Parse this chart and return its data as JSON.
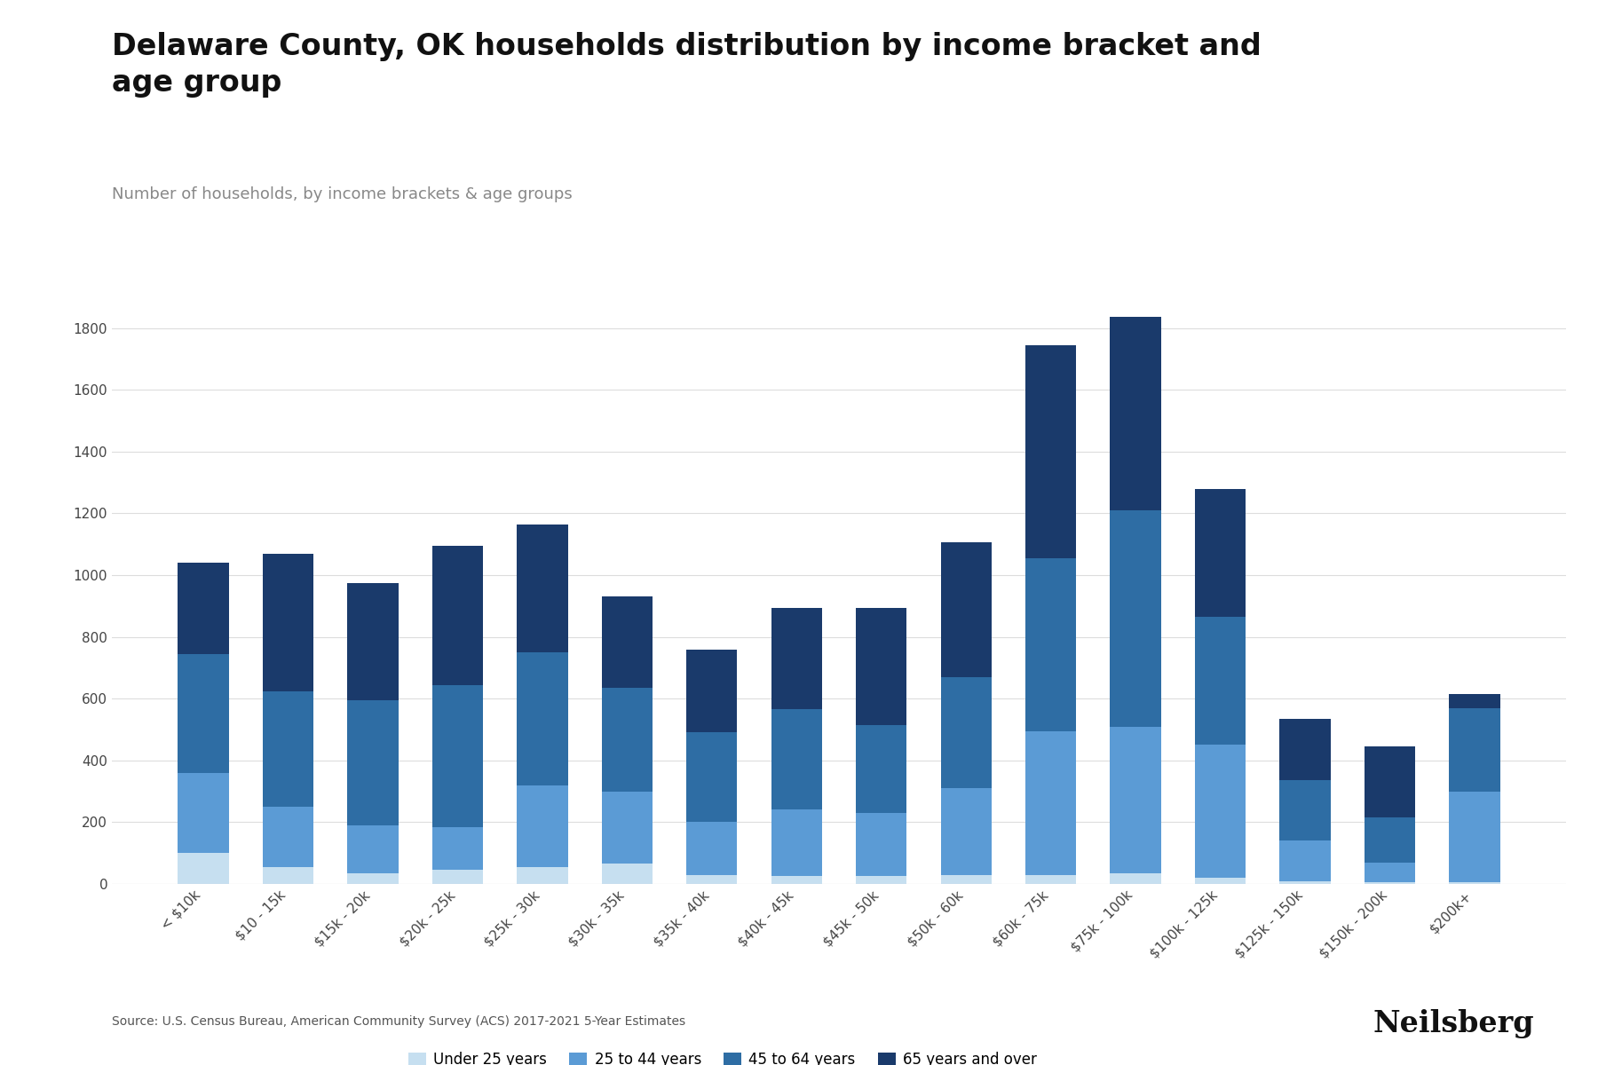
{
  "title": "Delaware County, OK households distribution by income bracket and\nage group",
  "subtitle": "Number of households, by income brackets & age groups",
  "source": "Source: U.S. Census Bureau, American Community Survey (ACS) 2017-2021 5-Year Estimates",
  "categories": [
    "< $10k",
    "$10 - 15k",
    "$15k - 20k",
    "$20k - 25k",
    "$25k - 30k",
    "$30k - 35k",
    "$35k - 40k",
    "$40k - 45k",
    "$45k - 50k",
    "$50k - 60k",
    "$60k - 75k",
    "$75k - 100k",
    "$100k - 125k",
    "$125k - 150k",
    "$150k - 200k",
    "$200k+"
  ],
  "age_groups": [
    "Under 25 years",
    "25 to 44 years",
    "45 to 64 years",
    "65 years and over"
  ],
  "colors": [
    "#c6dff0",
    "#5b9bd5",
    "#2e6da4",
    "#1a3a6b"
  ],
  "data": {
    "Under 25 years": [
      100,
      55,
      35,
      45,
      55,
      65,
      30,
      25,
      25,
      30,
      30,
      35,
      20,
      10,
      5,
      5
    ],
    "25 to 44 years": [
      260,
      195,
      155,
      140,
      265,
      235,
      170,
      215,
      205,
      280,
      465,
      475,
      430,
      130,
      65,
      295
    ],
    "45 to 64 years": [
      385,
      375,
      405,
      460,
      430,
      335,
      290,
      325,
      285,
      360,
      560,
      700,
      415,
      195,
      145,
      270
    ],
    "65 years and over": [
      295,
      445,
      380,
      450,
      415,
      295,
      270,
      330,
      380,
      435,
      690,
      625,
      415,
      200,
      230,
      45
    ]
  },
  "ylim": [
    0,
    2000
  ],
  "yticks": [
    0,
    200,
    400,
    600,
    800,
    1000,
    1200,
    1400,
    1600,
    1800
  ],
  "background_color": "#ffffff",
  "title_fontsize": 24,
  "subtitle_fontsize": 13,
  "tick_fontsize": 11,
  "legend_fontsize": 12,
  "source_fontsize": 10,
  "neilsberg_fontsize": 24,
  "bar_width": 0.6
}
